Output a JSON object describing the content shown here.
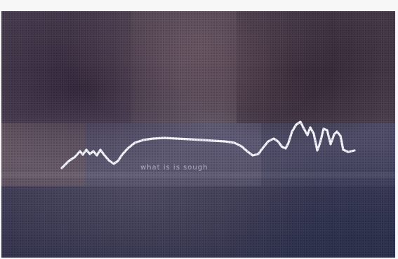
{
  "image": {
    "caption_text": "what is is sough",
    "trace_color": "#f4f4ff",
    "palette": {
      "dark_purple": "#3e2e46",
      "mauve": "#76606e",
      "slate": "#5a5a72",
      "deep_blue": "#3a3a5e",
      "brown": "#5b4944",
      "border": "#f7f7f7"
    }
  }
}
